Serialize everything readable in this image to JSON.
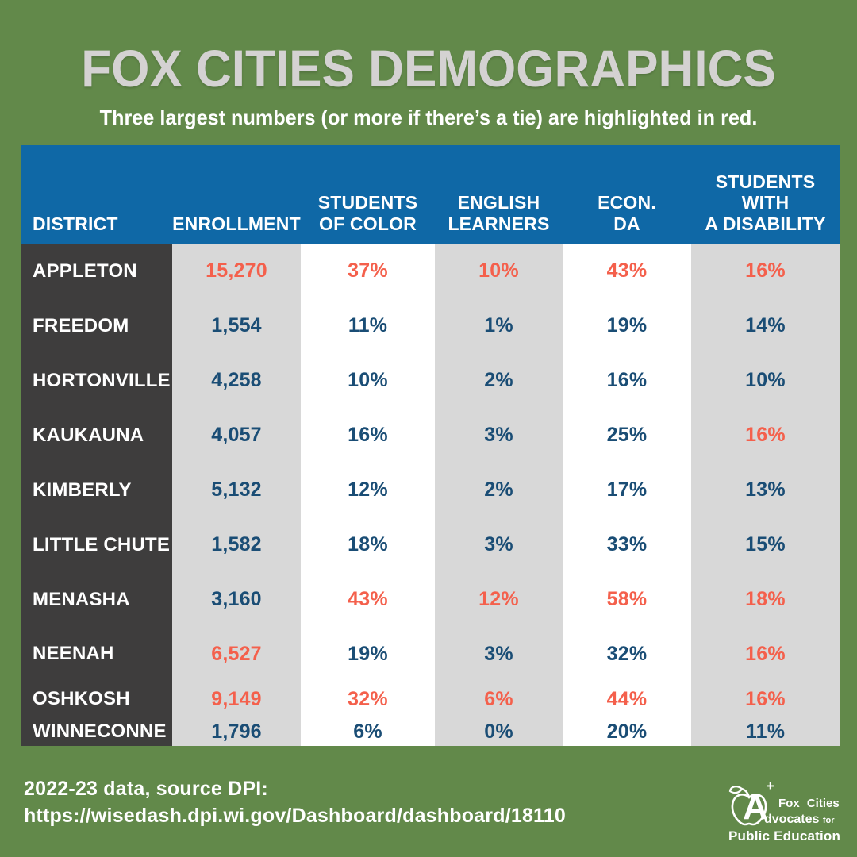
{
  "header": {
    "title": "FOX CITIES DEMOGRAPHICS",
    "subtitle": "Three largest numbers (or more if there’s a tie) are highlighted in red."
  },
  "colors": {
    "background": "#62894a",
    "title_gray": "#d4d2d2",
    "header_blue": "#0f68a6",
    "district_column_dark": "#3e3d3d",
    "alt_column_gray": "#d8d8d8",
    "alt_column_white": "#ffffff",
    "highlight_red": "#f4604c",
    "value_navy": "#1a4d75"
  },
  "chart_data": {
    "type": "table",
    "title": "FOX CITIES DEMOGRAPHICS",
    "subtitle": "Three largest numbers (or more if there’s a tie) are highlighted in red.",
    "highlight_rule": "Three largest numbers per column (or more if tie) shown in red",
    "columns": [
      {
        "id": "district",
        "label": "DISTRICT",
        "label_lines": [
          "DISTRICT"
        ]
      },
      {
        "id": "enrollment",
        "label": "ENROLLMENT",
        "label_lines": [
          "ENROLLMENT"
        ]
      },
      {
        "id": "students-of-color",
        "label": "STUDENTS OF COLOR",
        "label_lines": [
          "STUDENTS",
          "OF COLOR"
        ]
      },
      {
        "id": "english-learners",
        "label": "ENGLISH LEARNERS",
        "label_lines": [
          "ENGLISH",
          "LEARNERS"
        ]
      },
      {
        "id": "econ-da",
        "label": "ECON. DA",
        "label_lines": [
          "ECON.",
          "DA"
        ]
      },
      {
        "id": "students-with-a-disability",
        "label": "STUDENTS WITH A DISABILITY",
        "label_lines": [
          "STUDENTS",
          "WITH",
          "A DISABILITY"
        ]
      }
    ],
    "rows": [
      {
        "district": "APPLETON",
        "values": [
          "15,270",
          "37%",
          "10%",
          "43%",
          "16%"
        ],
        "highlight": [
          true,
          true,
          true,
          true,
          true
        ]
      },
      {
        "district": "FREEDOM",
        "values": [
          "1,554",
          "11%",
          "1%",
          "19%",
          "14%"
        ],
        "highlight": [
          false,
          false,
          false,
          false,
          false
        ]
      },
      {
        "district": "HORTONVILLE",
        "values": [
          "4,258",
          "10%",
          "2%",
          "16%",
          "10%"
        ],
        "highlight": [
          false,
          false,
          false,
          false,
          false
        ]
      },
      {
        "district": "KAUKAUNA",
        "values": [
          "4,057",
          "16%",
          "3%",
          "25%",
          "16%"
        ],
        "highlight": [
          false,
          false,
          false,
          false,
          true
        ]
      },
      {
        "district": "KIMBERLY",
        "values": [
          "5,132",
          "12%",
          "2%",
          "17%",
          "13%"
        ],
        "highlight": [
          false,
          false,
          false,
          false,
          false
        ]
      },
      {
        "district": "LITTLE CHUTE",
        "values": [
          "1,582",
          "18%",
          "3%",
          "33%",
          "15%"
        ],
        "highlight": [
          false,
          false,
          false,
          false,
          false
        ]
      },
      {
        "district": "MENASHA",
        "values": [
          "3,160",
          "43%",
          "12%",
          "58%",
          "18%"
        ],
        "highlight": [
          false,
          true,
          true,
          true,
          true
        ]
      },
      {
        "district": "NEENAH",
        "values": [
          "6,527",
          "19%",
          "3%",
          "32%",
          "16%"
        ],
        "highlight": [
          true,
          false,
          false,
          false,
          true
        ]
      },
      {
        "district": "OSHKOSH",
        "values": [
          "9,149",
          "32%",
          "6%",
          "44%",
          "16%"
        ],
        "highlight": [
          true,
          true,
          true,
          true,
          true
        ]
      },
      {
        "district": "WINNECONNE",
        "values": [
          "1,796",
          "6%",
          "0%",
          "20%",
          "11%"
        ],
        "highlight": [
          false,
          false,
          false,
          false,
          false
        ]
      }
    ]
  },
  "footer": {
    "line1": "2022-23 data, source DPI:",
    "line2": "https://wisedash.dpi.wi.gov/Dashboard/dashboard/18110"
  },
  "logo": {
    "letter": "A",
    "plus": "+",
    "line1": "Fox Cities",
    "mid": "dvocates",
    "mid_for": "for",
    "bottom": "Public Education"
  }
}
